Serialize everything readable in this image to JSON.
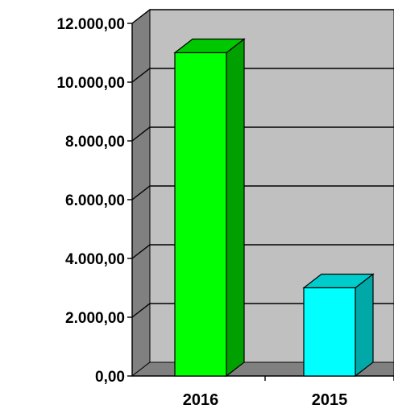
{
  "chart_data": {
    "type": "bar",
    "title": "",
    "xlabel": "",
    "ylabel": "",
    "categories": [
      "2016",
      "2015"
    ],
    "values": [
      11000,
      3000
    ],
    "ylim": [
      0,
      12000
    ],
    "yticks": [
      0,
      2000,
      4000,
      6000,
      8000,
      10000,
      12000
    ],
    "ytick_labels": [
      "0,00",
      "2.000,00",
      "4.000,00",
      "6.000,00",
      "8.000,00",
      "10.000,00",
      "12.000,00"
    ],
    "grid": true,
    "legend": "none",
    "three_d": true,
    "colors": {
      "bars": [
        "#00ff00",
        "#00ffff"
      ],
      "bar_sides": [
        "#00a000",
        "#00a8a8"
      ],
      "bar_tops": [
        "#00c800",
        "#00cccc"
      ],
      "wall": "#c0c0c0",
      "side_wall": "#808080",
      "floor": "#808080",
      "grid": "#000000"
    }
  }
}
